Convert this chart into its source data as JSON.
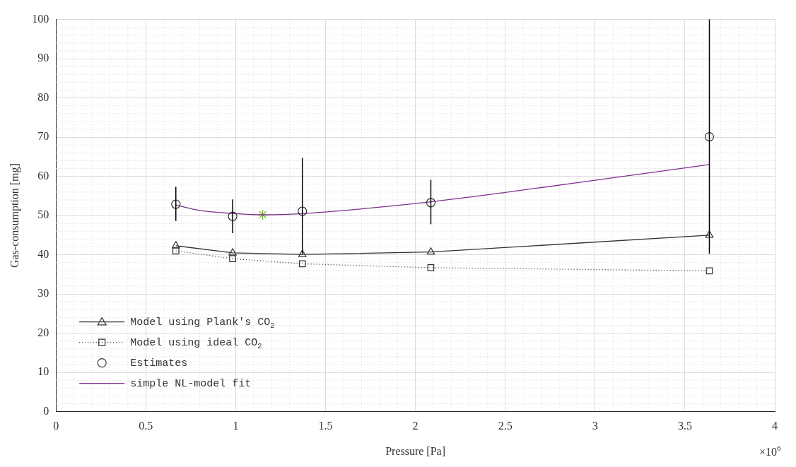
{
  "chart_data": {
    "type": "line",
    "xlabel": "Pressure [Pa]",
    "ylabel": "Gas-consumption [mg]",
    "x": [
      0.667,
      0.983,
      1.371,
      2.086,
      3.636
    ],
    "series": [
      {
        "name": "Model using Plank's CO$_{2}$",
        "color": "#333333",
        "marker": "triangle",
        "line_style": "solid",
        "values": [
          42.3,
          40.5,
          40.1,
          40.7,
          45.0
        ]
      },
      {
        "name": "Model using ideal CO$_{2}$",
        "color": "#333333",
        "marker": "square",
        "line_style": "dotted",
        "values": [
          41.0,
          39.0,
          37.7,
          36.7,
          35.9
        ]
      },
      {
        "name": "Estimates",
        "type": "scatter",
        "color": "#333333",
        "marker": "circle",
        "values": [
          52.9,
          49.8,
          51.1,
          53.3,
          70.1
        ],
        "errors": [
          [
            48.6,
            57.3
          ],
          [
            45.5,
            54.1
          ],
          [
            40.2,
            64.7
          ],
          [
            47.8,
            59.1
          ],
          [
            40.3,
            100
          ]
        ]
      },
      {
        "name": "simple NL-model fit",
        "color": "#7e2f8e",
        "marker": "none",
        "line_style": "solid",
        "x": [
          0.667,
          0.8,
          1.0,
          1.15,
          1.371,
          1.7,
          2.086,
          2.5,
          3.0,
          3.636
        ],
        "values": [
          52.7,
          51.3,
          50.5,
          50.2,
          50.5,
          51.7,
          53.5,
          55.9,
          59.0,
          63.0
        ]
      },
      {
        "type": "scatter",
        "color": "#77ac30",
        "marker": "cross",
        "x": [
          1.15
        ],
        "values": [
          50.2
        ]
      }
    ],
    "xlim": [
      0,
      4
    ],
    "xticks": [
      0,
      0.5,
      1,
      1.5,
      2,
      2.5,
      3,
      3.5,
      4
    ],
    "ylim": [
      0,
      100
    ],
    "yticks": [
      0,
      10,
      20,
      30,
      40,
      50,
      60,
      70,
      80,
      90,
      100
    ],
    "annotations": [
      "×10$^{6}$"
    ],
    "grid": true,
    "legend": "bottom left"
  }
}
